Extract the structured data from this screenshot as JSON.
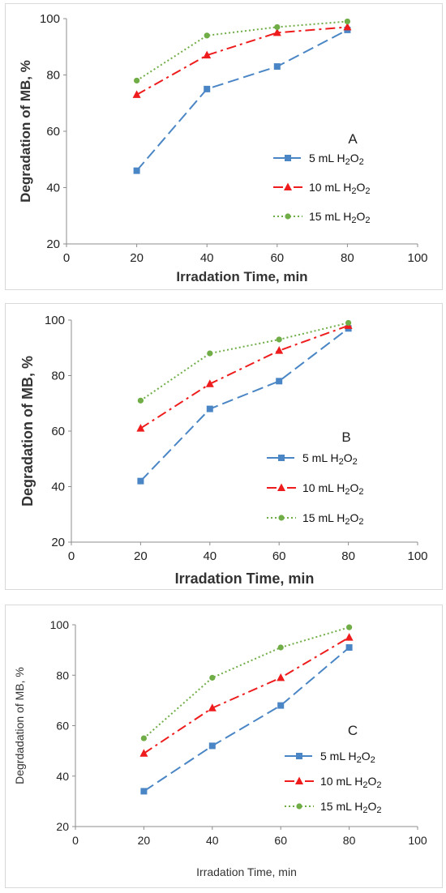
{
  "chart_data": [
    {
      "type": "line",
      "panel_label": "A",
      "xlabel": "Irradation Time, min",
      "ylabel": "Degradation of MB, %",
      "xlim": [
        0,
        100
      ],
      "ylim": [
        20,
        100
      ],
      "xticks": [
        "0",
        "20",
        "40",
        "60",
        "80",
        "100"
      ],
      "yticks": [
        "20",
        "40",
        "60",
        "80",
        "100"
      ],
      "grid": false,
      "legend_position": "right",
      "x": [
        20,
        40,
        60,
        80
      ],
      "series": [
        {
          "name_main": "5 mL H",
          "name_sub": "2",
          "name_mid": "O",
          "name_sub2": "2",
          "color": "#4A86C5",
          "marker": "square",
          "dash": "dashed",
          "values": [
            46,
            75,
            83,
            96
          ]
        },
        {
          "name_main": "10 mL H",
          "name_sub": "2",
          "name_mid": "O",
          "name_sub2": "2",
          "color": "#EE1C1C",
          "marker": "triangle",
          "dash": "dashdot",
          "values": [
            73,
            87,
            95,
            97
          ]
        },
        {
          "name_main": "15 mL H",
          "name_sub": "2",
          "name_mid": "O",
          "name_sub2": "2",
          "color": "#70AD47",
          "marker": "circle",
          "dash": "dotted",
          "values": [
            78,
            94,
            97,
            99
          ]
        }
      ]
    },
    {
      "type": "line",
      "panel_label": "B",
      "xlabel": "Irradation Time, min",
      "ylabel": "Degradation of MB, %",
      "xlim": [
        0,
        100
      ],
      "ylim": [
        20,
        100
      ],
      "xticks": [
        "0",
        "20",
        "40",
        "60",
        "80",
        "100"
      ],
      "yticks": [
        "20",
        "40",
        "60",
        "80",
        "100"
      ],
      "grid": false,
      "legend_position": "right",
      "x": [
        20,
        40,
        60,
        80
      ],
      "series": [
        {
          "name_main": "5 mL H",
          "name_sub": "2",
          "name_mid": "O",
          "name_sub2": "2",
          "color": "#4A86C5",
          "marker": "square",
          "dash": "dashed",
          "values": [
            42,
            68,
            78,
            97
          ]
        },
        {
          "name_main": "10 mL H",
          "name_sub": "2",
          "name_mid": "O",
          "name_sub2": "2",
          "color": "#EE1C1C",
          "marker": "triangle",
          "dash": "dashdot",
          "values": [
            61,
            77,
            89,
            98
          ]
        },
        {
          "name_main": "15 mL H",
          "name_sub": "2",
          "name_mid": "O",
          "name_sub2": "2",
          "color": "#70AD47",
          "marker": "circle",
          "dash": "dotted",
          "values": [
            71,
            88,
            93,
            99
          ]
        }
      ]
    },
    {
      "type": "line",
      "panel_label": "C",
      "xlabel": "Irradation Time, min",
      "ylabel": "Degrdadation of MB, %",
      "xlim": [
        0,
        100
      ],
      "ylim": [
        20,
        100
      ],
      "xticks": [
        "0",
        "20",
        "40",
        "60",
        "80",
        "100"
      ],
      "yticks": [
        "20",
        "40",
        "60",
        "80",
        "100"
      ],
      "grid": false,
      "legend_position": "right",
      "x": [
        20,
        40,
        60,
        80
      ],
      "series": [
        {
          "name_main": "5 mL H",
          "name_sub": "2",
          "name_mid": "O",
          "name_sub2": "2",
          "color": "#4A86C5",
          "marker": "square",
          "dash": "dashed",
          "values": [
            34,
            52,
            68,
            91
          ]
        },
        {
          "name_main": "10 mL H",
          "name_sub": "2",
          "name_mid": "O",
          "name_sub2": "2",
          "color": "#EE1C1C",
          "marker": "triangle",
          "dash": "dashdot",
          "values": [
            49,
            67,
            79,
            95
          ]
        },
        {
          "name_main": "15 mL H",
          "name_sub": "2",
          "name_mid": "O",
          "name_sub2": "2",
          "color": "#70AD47",
          "marker": "circle",
          "dash": "dotted",
          "values": [
            55,
            79,
            91,
            99
          ]
        }
      ]
    }
  ]
}
